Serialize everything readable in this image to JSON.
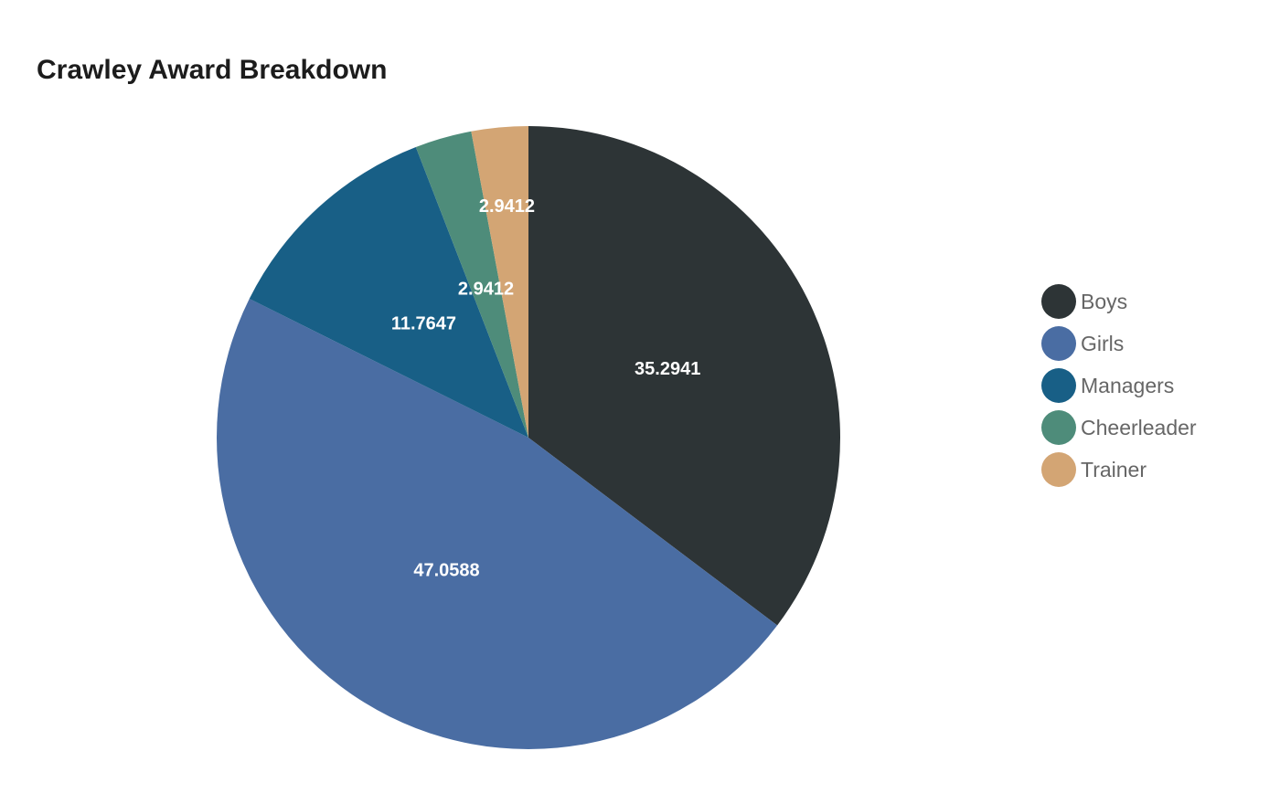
{
  "chart_data": {
    "type": "pie",
    "title": "Crawley Award Breakdown",
    "legend_position": "right",
    "slices": [
      {
        "name": "Boys",
        "value": 35.2941,
        "label": "35.2941",
        "color": "#2d3436"
      },
      {
        "name": "Girls",
        "value": 47.0588,
        "label": "47.0588",
        "color": "#4a6da3"
      },
      {
        "name": "Managers",
        "value": 11.7647,
        "label": "11.7647",
        "color": "#185f86"
      },
      {
        "name": "Cheerleader",
        "value": 2.9412,
        "label": "2.9412",
        "color": "#4e8c7a"
      },
      {
        "name": "Trainer",
        "value": 2.9412,
        "label": "2.9412",
        "color": "#d3a574"
      }
    ]
  }
}
